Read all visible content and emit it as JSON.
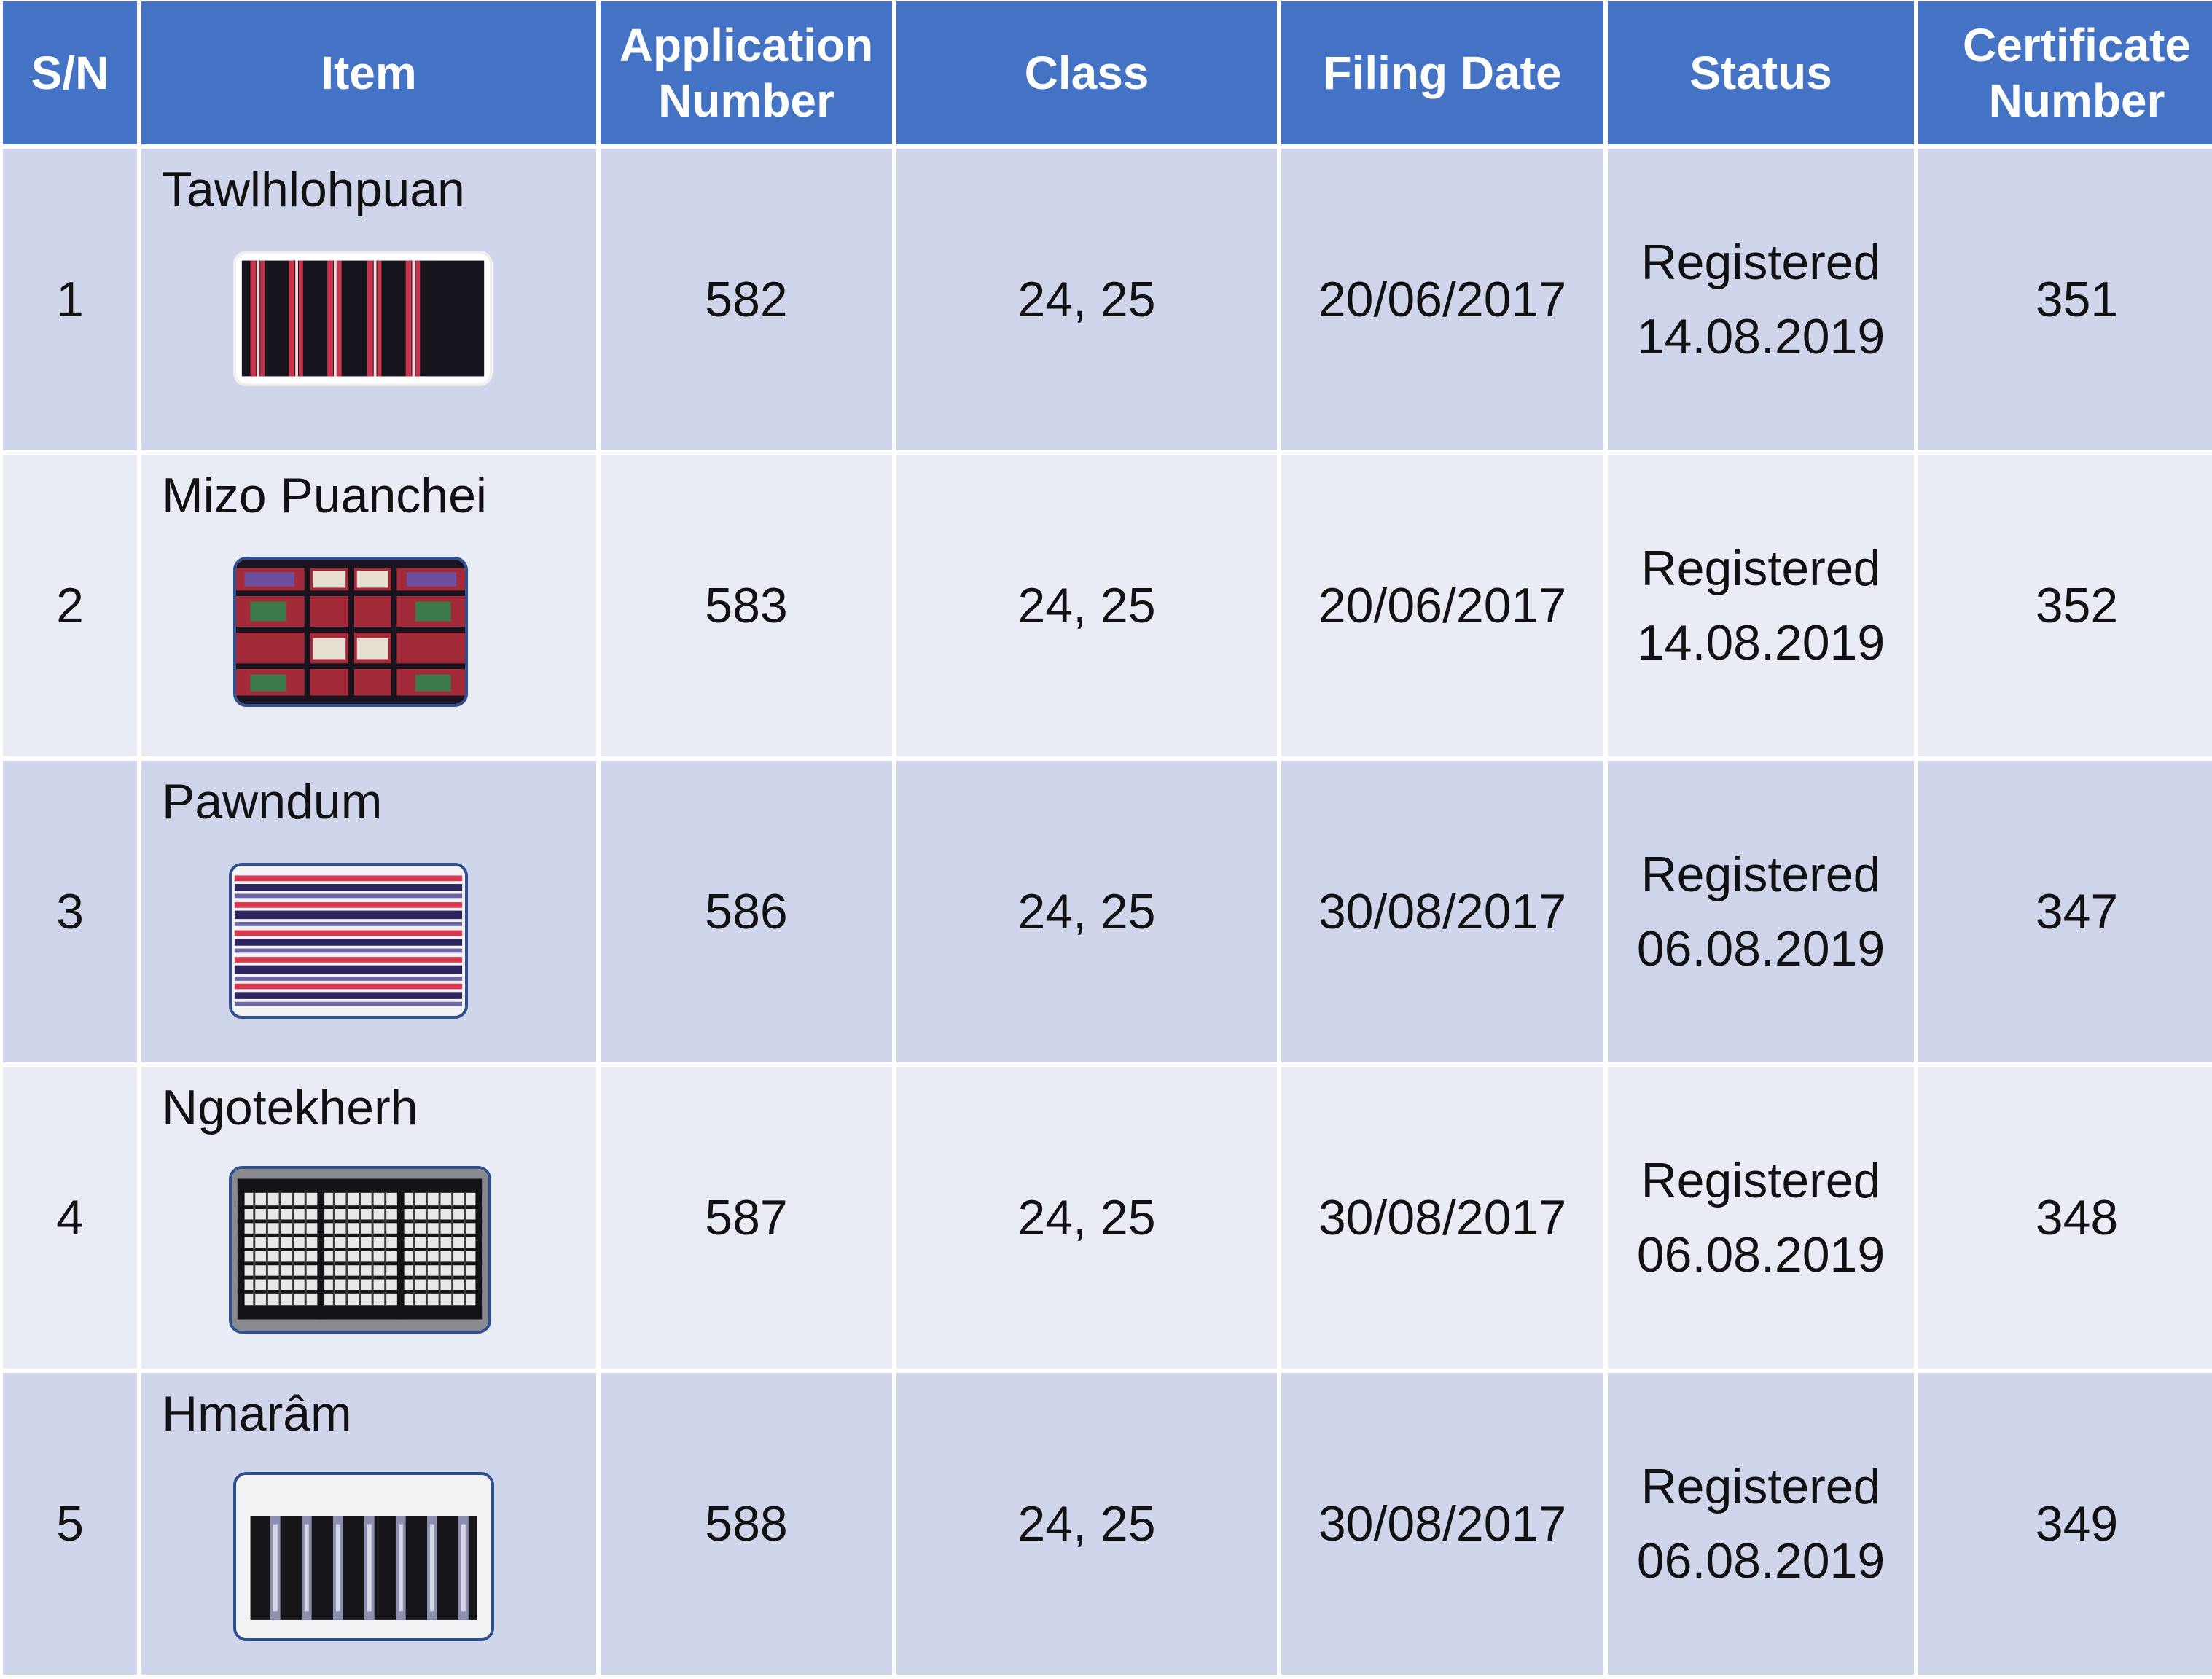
{
  "table": {
    "headers": {
      "sn": "S/N",
      "item": "Item",
      "application_number": "Application Number",
      "class": "Class",
      "filing_date": "Filing Date",
      "status": "Status",
      "certificate_number": "Certificate Number"
    },
    "rows": [
      {
        "sn": "1",
        "item": "Tawlhlohpuan",
        "application_number": "582",
        "class": "24, 25",
        "filing_date": "20/06/2017",
        "status": "Registered",
        "status_date": "14.08.2019",
        "certificate_number": "351"
      },
      {
        "sn": "2",
        "item": "Mizo Puanchei",
        "application_number": "583",
        "class": "24, 25",
        "filing_date": "20/06/2017",
        "status": "Registered",
        "status_date": "14.08.2019",
        "certificate_number": "352"
      },
      {
        "sn": "3",
        "item": "Pawndum",
        "application_number": "586",
        "class": "24, 25",
        "filing_date": "30/08/2017",
        "status": "Registered",
        "status_date": "06.08.2019",
        "certificate_number": "347"
      },
      {
        "sn": "4",
        "item": "Ngotekherh",
        "application_number": "587",
        "class": "24, 25",
        "filing_date": "30/08/2017",
        "status": "Registered",
        "status_date": "06.08.2019",
        "certificate_number": "348"
      },
      {
        "sn": "5",
        "item": "Hmarâm",
        "application_number": "588",
        "class": "24, 25",
        "filing_date": "30/08/2017",
        "status": "Registered",
        "status_date": "06.08.2019",
        "certificate_number": "349"
      }
    ]
  },
  "colors": {
    "header_bg": "#4472c4",
    "row_dark": "#cfd5ea",
    "row_light": "#e9ebf5",
    "image_border": "#2f4f8f"
  }
}
